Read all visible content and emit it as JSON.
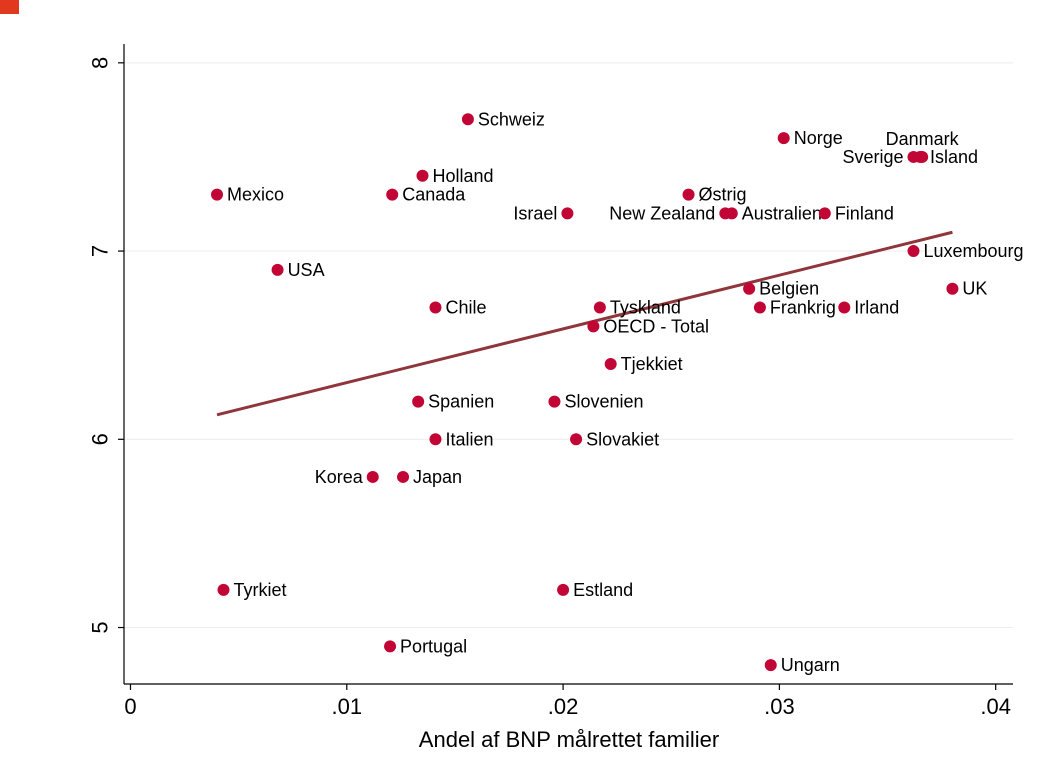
{
  "chart_data": {
    "type": "scatter",
    "title": "",
    "xlabel": "Andel af BNP målrettet familier",
    "ylabel": "",
    "xlim": [
      -0.0003,
      0.0408
    ],
    "ylim": [
      4.7,
      8.1
    ],
    "x_ticks": [
      0,
      0.01,
      0.02,
      0.03,
      0.04
    ],
    "x_tick_labels": [
      "0",
      ".01",
      ".02",
      ".03",
      ".04"
    ],
    "y_ticks": [
      5,
      6,
      7,
      8
    ],
    "y_tick_labels": [
      "5",
      "6",
      "7",
      "8"
    ],
    "grid": "horizontal",
    "marker_color": "#c10534",
    "fit_color": "#90353b",
    "fit_line": {
      "x": [
        0.004,
        0.038
      ],
      "y": [
        6.13,
        7.1
      ]
    },
    "points": [
      {
        "label": "Schweiz",
        "x": 0.0156,
        "y": 7.7,
        "pos": "right"
      },
      {
        "label": "Norge",
        "x": 0.0302,
        "y": 7.6,
        "pos": "right"
      },
      {
        "label": "Danmark",
        "x": 0.0366,
        "y": 7.5,
        "pos": "up"
      },
      {
        "label": "Sverige",
        "x": 0.0362,
        "y": 7.5,
        "pos": "left"
      },
      {
        "label": "Island",
        "x": 0.0365,
        "y": 7.5,
        "pos": "right"
      },
      {
        "label": "Holland",
        "x": 0.0135,
        "y": 7.4,
        "pos": "right"
      },
      {
        "label": "Mexico",
        "x": 0.004,
        "y": 7.3,
        "pos": "right"
      },
      {
        "label": "Canada",
        "x": 0.0121,
        "y": 7.3,
        "pos": "right"
      },
      {
        "label": "Østrig",
        "x": 0.0258,
        "y": 7.3,
        "pos": "right"
      },
      {
        "label": "Israel",
        "x": 0.0202,
        "y": 7.2,
        "pos": "left"
      },
      {
        "label": "New Zealand",
        "x": 0.0275,
        "y": 7.2,
        "pos": "left"
      },
      {
        "label": "Australien",
        "x": 0.0278,
        "y": 7.2,
        "pos": "right"
      },
      {
        "label": "Finland",
        "x": 0.0321,
        "y": 7.2,
        "pos": "right"
      },
      {
        "label": "Luxembourg",
        "x": 0.0362,
        "y": 7.0,
        "pos": "right"
      },
      {
        "label": "USA",
        "x": 0.0068,
        "y": 6.9,
        "pos": "right"
      },
      {
        "label": "Belgien",
        "x": 0.0286,
        "y": 6.8,
        "pos": "right"
      },
      {
        "label": "UK",
        "x": 0.038,
        "y": 6.8,
        "pos": "right"
      },
      {
        "label": "Chile",
        "x": 0.0141,
        "y": 6.7,
        "pos": "right"
      },
      {
        "label": "Tyskland",
        "x": 0.0217,
        "y": 6.7,
        "pos": "right"
      },
      {
        "label": "Frankrig",
        "x": 0.0291,
        "y": 6.7,
        "pos": "right"
      },
      {
        "label": "Irland",
        "x": 0.033,
        "y": 6.7,
        "pos": "right"
      },
      {
        "label": "OECD - Total",
        "x": 0.0214,
        "y": 6.6,
        "pos": "right"
      },
      {
        "label": "Tjekkiet",
        "x": 0.0222,
        "y": 6.4,
        "pos": "right"
      },
      {
        "label": "Spanien",
        "x": 0.0133,
        "y": 6.2,
        "pos": "right"
      },
      {
        "label": "Slovenien",
        "x": 0.0196,
        "y": 6.2,
        "pos": "right"
      },
      {
        "label": "Italien",
        "x": 0.0141,
        "y": 6.0,
        "pos": "right"
      },
      {
        "label": "Slovakiet",
        "x": 0.0206,
        "y": 6.0,
        "pos": "right"
      },
      {
        "label": "Korea",
        "x": 0.0112,
        "y": 5.8,
        "pos": "left"
      },
      {
        "label": "Japan",
        "x": 0.0126,
        "y": 5.8,
        "pos": "right"
      },
      {
        "label": "Tyrkiet",
        "x": 0.0043,
        "y": 5.2,
        "pos": "right"
      },
      {
        "label": "Estland",
        "x": 0.02,
        "y": 5.2,
        "pos": "right"
      },
      {
        "label": "Portugal",
        "x": 0.012,
        "y": 4.9,
        "pos": "right"
      },
      {
        "label": "Ungarn",
        "x": 0.0296,
        "y": 4.8,
        "pos": "right"
      }
    ]
  }
}
